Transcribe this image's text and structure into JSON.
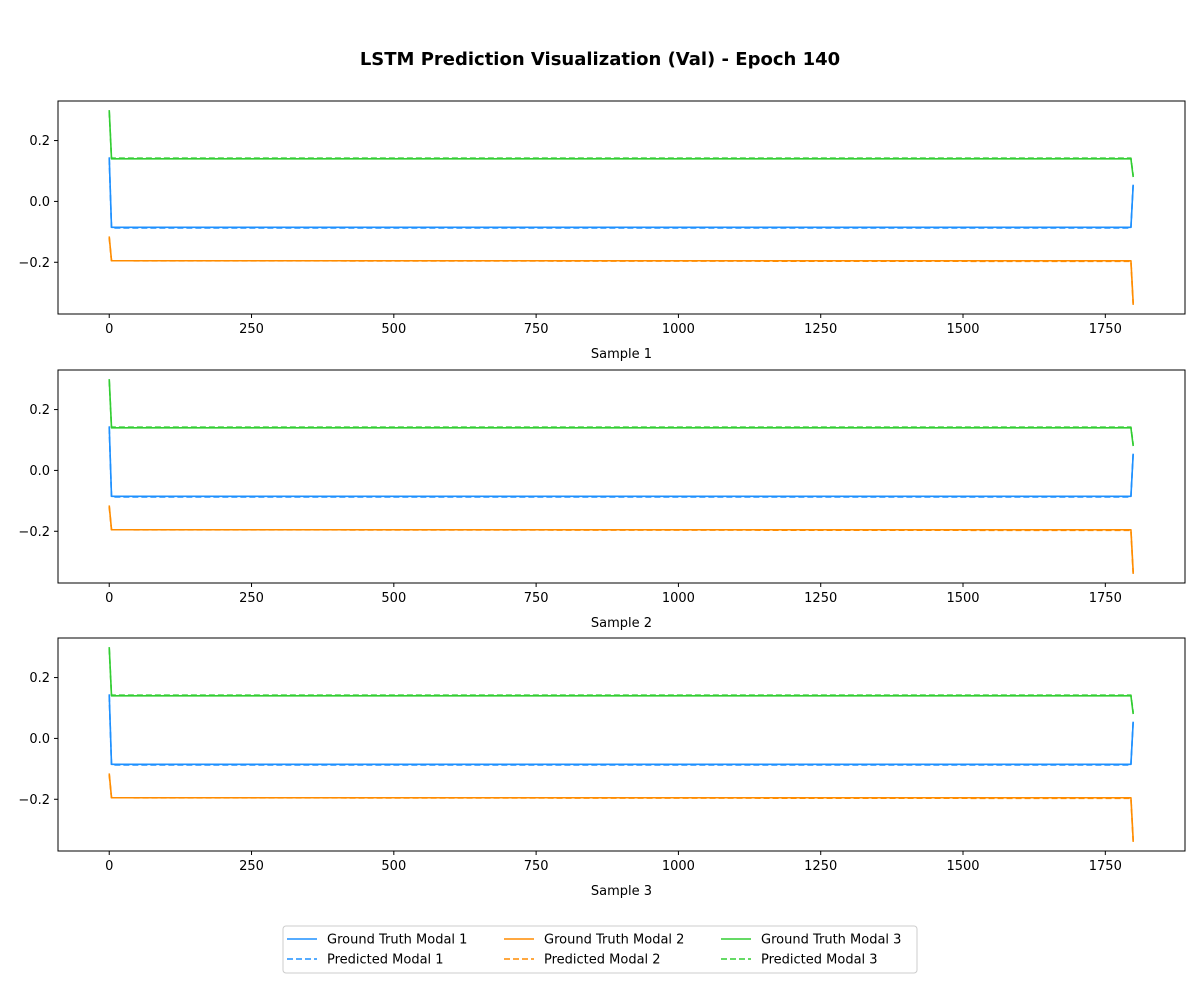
{
  "chart_data": {
    "type": "line",
    "title": "LSTM Prediction Visualization (Val) - Epoch 140",
    "xlim": [
      -90,
      1890
    ],
    "ylim": [
      -0.37,
      0.33
    ],
    "xticks": [
      0,
      250,
      500,
      750,
      1000,
      1250,
      1500,
      1750
    ],
    "yticks": [
      -0.2,
      0.0,
      0.2
    ],
    "ytick_labels": [
      "−0.2",
      "0.0",
      "0.2"
    ],
    "grid": false,
    "legend": {
      "placement": "bottom-center",
      "columns": 3
    },
    "subplots": [
      {
        "xlabel": "Sample 1",
        "series": [
          {
            "name": "Ground Truth Modal 1",
            "color": "#1e90ff",
            "style": "solid",
            "x": [
              0,
              4,
              1795,
              1799
            ],
            "y": [
              0.145,
              -0.085,
              -0.085,
              0.055
            ]
          },
          {
            "name": "Predicted Modal 1",
            "color": "#1e90ff",
            "style": "dashed",
            "x": [
              0,
              4,
              1795,
              1799
            ],
            "y": [
              0.14,
              -0.087,
              -0.087,
              0.06
            ]
          },
          {
            "name": "Ground Truth Modal 2",
            "color": "#ff8c00",
            "style": "solid",
            "x": [
              0,
              4,
              1795,
              1799
            ],
            "y": [
              -0.115,
              -0.195,
              -0.195,
              -0.335
            ]
          },
          {
            "name": "Predicted Modal 2",
            "color": "#ff8c00",
            "style": "dashed",
            "x": [
              0,
              4,
              1795,
              1799
            ],
            "y": [
              -0.12,
              -0.195,
              -0.197,
              -0.34
            ]
          },
          {
            "name": "Ground Truth Modal 3",
            "color": "#32cd32",
            "style": "solid",
            "x": [
              0,
              4,
              1795,
              1799
            ],
            "y": [
              0.3,
              0.14,
              0.14,
              0.08
            ]
          },
          {
            "name": "Predicted Modal 3",
            "color": "#32cd32",
            "style": "dashed",
            "x": [
              0,
              4,
              1795,
              1799
            ],
            "y": [
              0.295,
              0.142,
              0.142,
              0.085
            ]
          }
        ]
      },
      {
        "xlabel": "Sample 2",
        "series": [
          {
            "name": "Ground Truth Modal 1",
            "color": "#1e90ff",
            "style": "solid",
            "x": [
              0,
              4,
              1795,
              1799
            ],
            "y": [
              0.145,
              -0.085,
              -0.085,
              0.055
            ]
          },
          {
            "name": "Predicted Modal 1",
            "color": "#1e90ff",
            "style": "dashed",
            "x": [
              0,
              4,
              1795,
              1799
            ],
            "y": [
              0.14,
              -0.087,
              -0.087,
              0.06
            ]
          },
          {
            "name": "Ground Truth Modal 2",
            "color": "#ff8c00",
            "style": "solid",
            "x": [
              0,
              4,
              1795,
              1799
            ],
            "y": [
              -0.115,
              -0.195,
              -0.195,
              -0.335
            ]
          },
          {
            "name": "Predicted Modal 2",
            "color": "#ff8c00",
            "style": "dashed",
            "x": [
              0,
              4,
              1795,
              1799
            ],
            "y": [
              -0.12,
              -0.195,
              -0.197,
              -0.34
            ]
          },
          {
            "name": "Ground Truth Modal 3",
            "color": "#32cd32",
            "style": "solid",
            "x": [
              0,
              4,
              1795,
              1799
            ],
            "y": [
              0.3,
              0.14,
              0.14,
              0.08
            ]
          },
          {
            "name": "Predicted Modal 3",
            "color": "#32cd32",
            "style": "dashed",
            "x": [
              0,
              4,
              1795,
              1799
            ],
            "y": [
              0.295,
              0.142,
              0.142,
              0.085
            ]
          }
        ]
      },
      {
        "xlabel": "Sample 3",
        "series": [
          {
            "name": "Ground Truth Modal 1",
            "color": "#1e90ff",
            "style": "solid",
            "x": [
              0,
              4,
              1795,
              1799
            ],
            "y": [
              0.145,
              -0.085,
              -0.085,
              0.055
            ]
          },
          {
            "name": "Predicted Modal 1",
            "color": "#1e90ff",
            "style": "dashed",
            "x": [
              0,
              4,
              1795,
              1799
            ],
            "y": [
              0.14,
              -0.087,
              -0.087,
              0.06
            ]
          },
          {
            "name": "Ground Truth Modal 2",
            "color": "#ff8c00",
            "style": "solid",
            "x": [
              0,
              4,
              1795,
              1799
            ],
            "y": [
              -0.115,
              -0.195,
              -0.195,
              -0.335
            ]
          },
          {
            "name": "Predicted Modal 2",
            "color": "#ff8c00",
            "style": "dashed",
            "x": [
              0,
              4,
              1795,
              1799
            ],
            "y": [
              -0.12,
              -0.195,
              -0.197,
              -0.34
            ]
          },
          {
            "name": "Ground Truth Modal 3",
            "color": "#32cd32",
            "style": "solid",
            "x": [
              0,
              4,
              1795,
              1799
            ],
            "y": [
              0.3,
              0.14,
              0.14,
              0.08
            ]
          },
          {
            "name": "Predicted Modal 3",
            "color": "#32cd32",
            "style": "dashed",
            "x": [
              0,
              4,
              1795,
              1799
            ],
            "y": [
              0.295,
              0.142,
              0.142,
              0.085
            ]
          }
        ]
      }
    ],
    "legend_entries": [
      {
        "name": "Ground Truth Modal 1",
        "color": "#1e90ff",
        "style": "solid"
      },
      {
        "name": "Predicted Modal 1",
        "color": "#1e90ff",
        "style": "dashed"
      },
      {
        "name": "Ground Truth Modal 2",
        "color": "#ff8c00",
        "style": "solid"
      },
      {
        "name": "Predicted Modal 2",
        "color": "#ff8c00",
        "style": "dashed"
      },
      {
        "name": "Ground Truth Modal 3",
        "color": "#32cd32",
        "style": "solid"
      },
      {
        "name": "Predicted Modal 3",
        "color": "#32cd32",
        "style": "dashed"
      }
    ]
  }
}
